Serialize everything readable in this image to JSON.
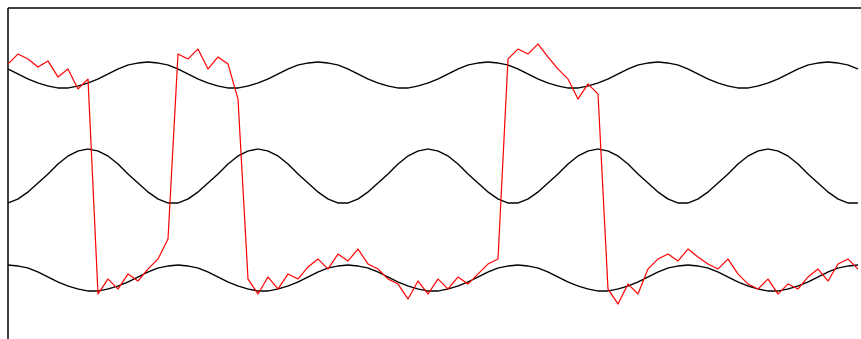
{
  "chart_data": {
    "type": "line",
    "x": [
      0,
      1,
      2,
      3,
      4,
      5,
      6,
      7,
      8,
      9,
      10,
      11,
      12,
      13,
      14,
      15,
      16,
      17,
      18,
      19,
      20,
      21,
      22,
      23,
      24,
      25,
      26,
      27,
      28,
      29,
      30,
      31,
      32,
      33,
      34,
      35,
      36,
      37,
      38,
      39,
      40,
      41,
      42,
      43,
      44,
      45,
      46,
      47,
      48,
      49,
      50,
      51,
      52,
      53,
      54,
      55,
      56,
      57,
      58,
      59,
      60,
      61,
      62,
      63,
      64,
      65,
      66,
      67,
      68,
      69,
      70,
      71,
      72,
      73,
      74,
      75,
      76,
      77,
      78,
      79,
      80,
      81,
      82,
      83,
      84,
      85
    ],
    "xlim": [
      0,
      85.3
    ],
    "ylim": [
      0,
      331
    ],
    "series": [
      {
        "color": "#000000",
        "values": [
          270,
          265,
          260,
          256,
          253,
          251,
          251,
          253,
          256,
          260,
          265,
          270,
          274,
          276,
          277,
          276,
          274,
          270,
          265,
          260,
          256,
          253,
          251,
          251,
          253,
          256,
          260,
          265,
          270,
          274,
          276,
          277,
          276,
          274,
          270,
          265,
          260,
          256,
          253,
          251,
          251,
          253,
          256,
          260,
          265,
          270,
          274,
          276,
          277,
          276,
          274,
          270,
          265,
          260,
          256,
          253,
          251,
          251,
          253,
          256,
          260,
          265,
          270,
          274,
          276,
          277,
          276,
          274,
          270,
          265,
          260,
          256,
          253,
          251,
          251,
          253,
          256,
          260,
          265,
          270,
          274,
          276,
          277,
          276,
          274,
          270
        ]
      },
      {
        "color": "#000000",
        "values": [
          136,
          140,
          147,
          156,
          165,
          175,
          183,
          188,
          190,
          188,
          183,
          175,
          165,
          156,
          147,
          140,
          136,
          136,
          140,
          147,
          156,
          165,
          175,
          183,
          188,
          190,
          188,
          183,
          175,
          165,
          156,
          147,
          140,
          136,
          136,
          140,
          147,
          156,
          165,
          175,
          183,
          188,
          190,
          188,
          183,
          175,
          165,
          156,
          147,
          140,
          136,
          136,
          140,
          147,
          156,
          165,
          175,
          183,
          188,
          190,
          188,
          183,
          175,
          165,
          156,
          147,
          140,
          136,
          136,
          140,
          147,
          156,
          165,
          175,
          183,
          188,
          190,
          188,
          183,
          175,
          165,
          156,
          147,
          140,
          136,
          136
        ]
      },
      {
        "color": "#000000",
        "values": [
          74,
          73,
          71,
          67,
          62,
          57,
          53,
          50,
          48,
          48,
          50,
          53,
          57,
          62,
          67,
          71,
          73,
          74,
          73,
          71,
          67,
          62,
          57,
          53,
          50,
          48,
          48,
          50,
          53,
          57,
          62,
          67,
          71,
          73,
          74,
          73,
          71,
          67,
          62,
          57,
          53,
          50,
          48,
          48,
          50,
          53,
          57,
          62,
          67,
          71,
          73,
          74,
          73,
          71,
          67,
          62,
          57,
          53,
          50,
          48,
          48,
          50,
          53,
          57,
          62,
          67,
          71,
          73,
          74,
          73,
          71,
          67,
          62,
          57,
          53,
          50,
          48,
          48,
          50,
          53,
          57,
          62,
          67,
          71,
          73,
          74
        ]
      },
      {
        "color": "#ff0000",
        "values": [
          275,
          285,
          280,
          272,
          278,
          262,
          270,
          250,
          260,
          45,
          60,
          50,
          65,
          58,
          70,
          80,
          100,
          285,
          280,
          290,
          270,
          282,
          275,
          240,
          60,
          45,
          62,
          50,
          65,
          60,
          72,
          80,
          70,
          85,
          78,
          90,
          75,
          70,
          60,
          55,
          40,
          58,
          45,
          60,
          50,
          62,
          55,
          65,
          75,
          80,
          280,
          290,
          285,
          295,
          282,
          270,
          260,
          240,
          255,
          245,
          50,
          35,
          55,
          45,
          70,
          80,
          85,
          78,
          90,
          82,
          75,
          70,
          80,
          65,
          55,
          50,
          60,
          45,
          55,
          50,
          62,
          70,
          58,
          75,
          80,
          70
        ]
      }
    ]
  }
}
